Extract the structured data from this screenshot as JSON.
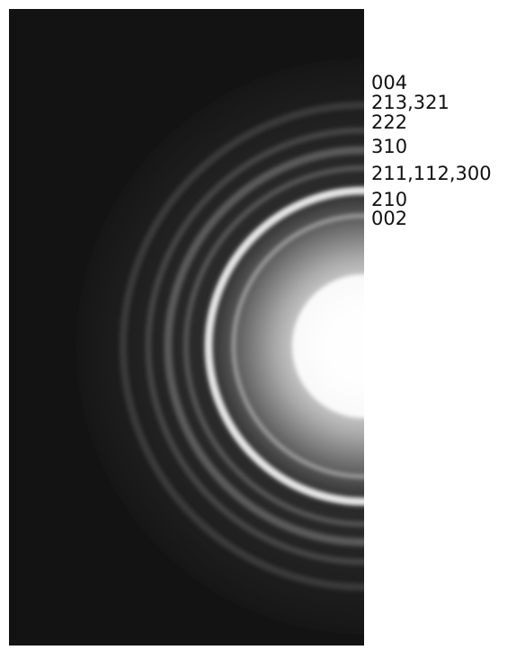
{
  "labels": [
    "004",
    "213,321",
    "222",
    "310",
    "211,112,300",
    "210",
    "002"
  ]
}
